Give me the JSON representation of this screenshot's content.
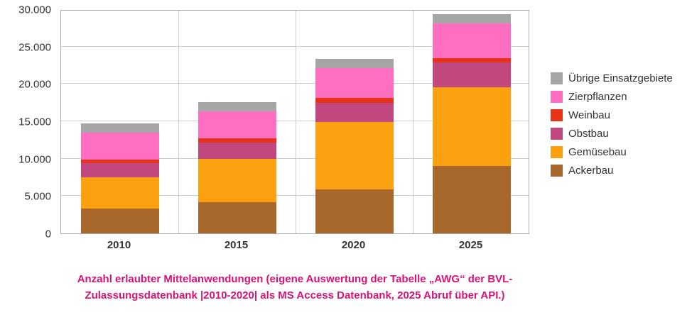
{
  "chart_data": {
    "type": "bar",
    "stacked": true,
    "title": "",
    "categories": [
      "2010",
      "2015",
      "2020",
      "2025"
    ],
    "series": [
      {
        "name": "Ackerbau",
        "color": "#A8682B",
        "values": [
          3300,
          4200,
          5900,
          9000
        ]
      },
      {
        "name": "Gemüsebau",
        "color": "#FBA00F",
        "values": [
          4200,
          5800,
          9000,
          10600
        ]
      },
      {
        "name": "Obstbau",
        "color": "#C2477E",
        "values": [
          1900,
          2200,
          2600,
          3300
        ]
      },
      {
        "name": "Weinbau",
        "color": "#E6331A",
        "values": [
          500,
          500,
          600,
          600
        ]
      },
      {
        "name": "Zierpflanzen",
        "color": "#FF6EC0",
        "values": [
          3600,
          3600,
          4000,
          4600
        ]
      },
      {
        "name": "Übrige Einsatzgebiete",
        "color": "#A6A6A6",
        "values": [
          1200,
          1300,
          1300,
          1200
        ]
      }
    ],
    "totals": [
      14700,
      17600,
      23400,
      29300
    ],
    "ylim": [
      0,
      30000
    ],
    "yticks": [
      {
        "value": 0,
        "label": "0"
      },
      {
        "value": 5000,
        "label": "5.000"
      },
      {
        "value": 10000,
        "label": "10.000"
      },
      {
        "value": 15000,
        "label": "15.000"
      },
      {
        "value": 20000,
        "label": "20.000"
      },
      {
        "value": 25000,
        "label": "25.000"
      },
      {
        "value": 30000,
        "label": "30.000"
      }
    ],
    "xlabel": "",
    "ylabel": "",
    "grid": true,
    "legend_position": "right"
  },
  "caption": {
    "line1": "Anzahl erlaubter Mittelanwendungen (eigene Auswertung der Tabelle „AWG“ der BVL-",
    "line2": "Zulassungsdatenbank |2010-2020| als MS Access Datenbank, 2025 Abruf über API.)",
    "color": "#D81277"
  }
}
